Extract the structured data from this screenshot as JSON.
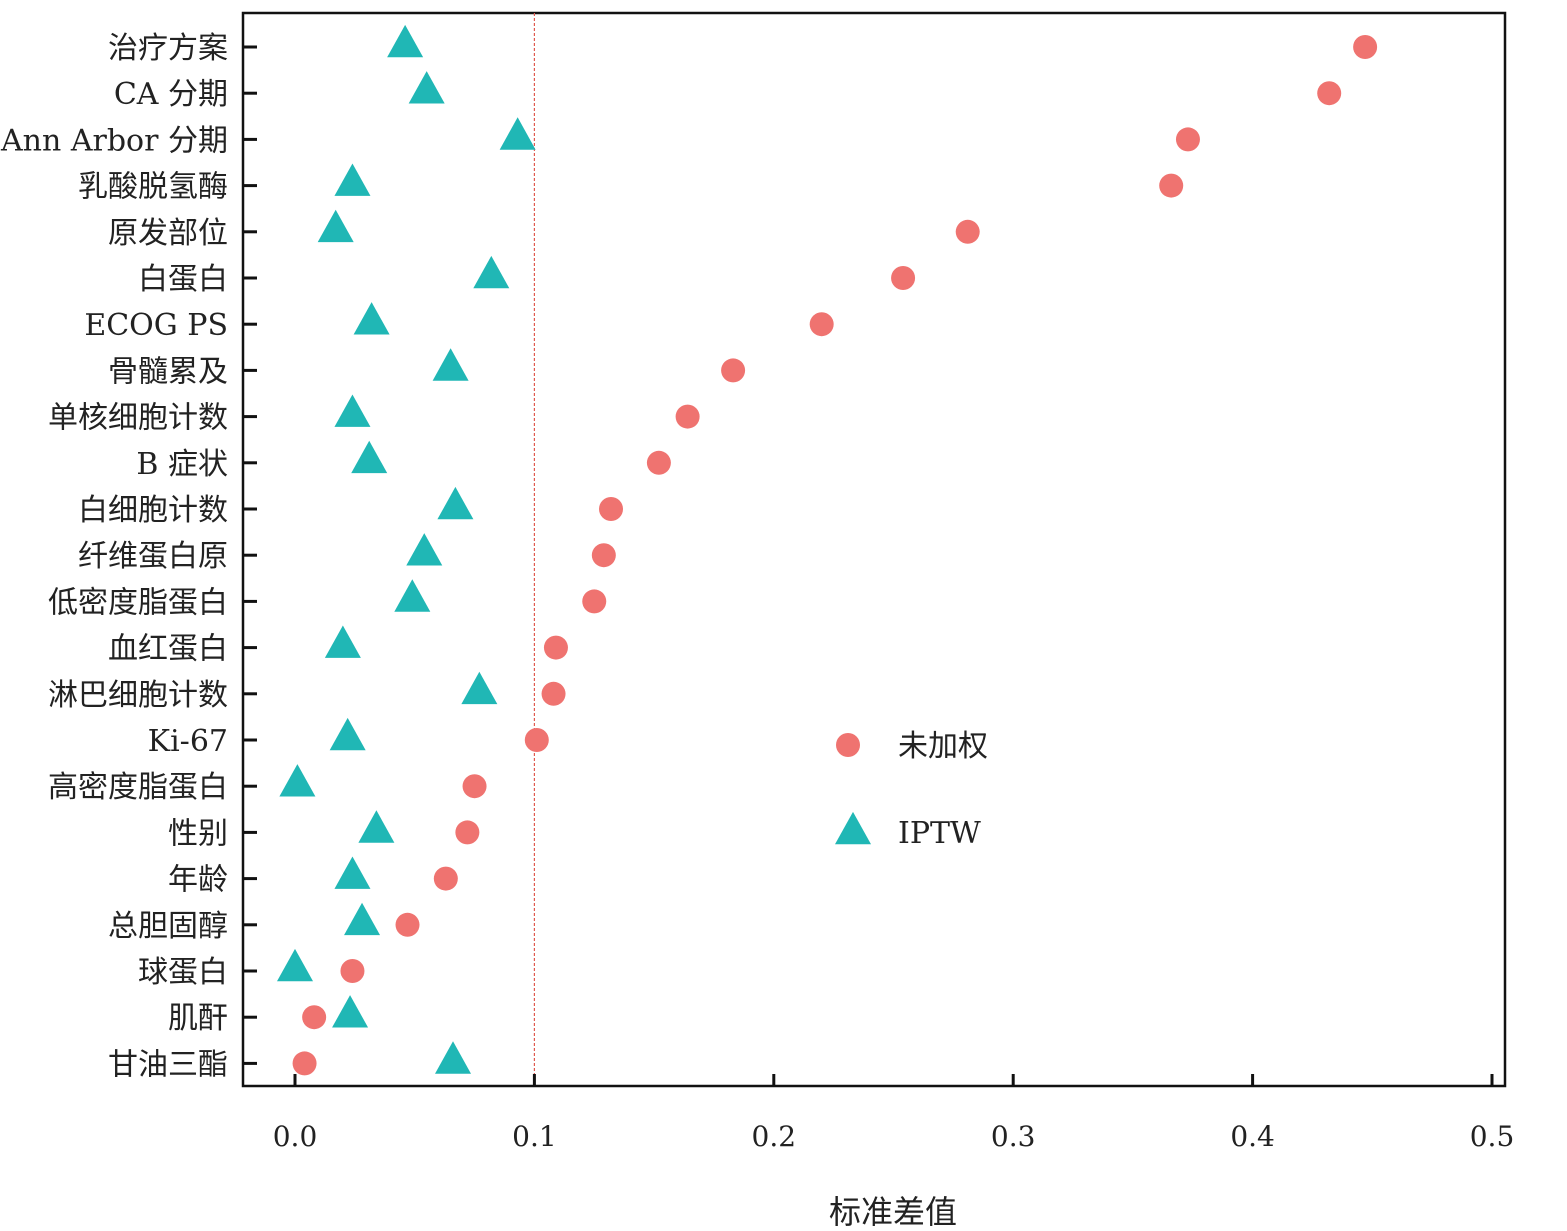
{
  "chart_data": {
    "type": "scatter",
    "title": "",
    "xlabel": "标准差值",
    "ylabel": "",
    "xlim": [
      -0.02,
      0.5
    ],
    "x_ticks": [
      0.0,
      0.1,
      0.2,
      0.3,
      0.4,
      0.5
    ],
    "x_tick_labels": [
      "0.0",
      "0.1",
      "0.2",
      "0.3",
      "0.4",
      "0.5"
    ],
    "reference_line": 0.1,
    "grid": false,
    "legend_position": "center-right",
    "categories": [
      "治疗方案",
      "CA 分期",
      "Ann Arbor 分期",
      "乳酸脱氢酶",
      "原发部位",
      "白蛋白",
      "ECOG PS",
      "骨髓累及",
      "单核细胞计数",
      "B 症状",
      "白细胞计数",
      "纤维蛋白原",
      "低密度脂蛋白",
      "血红蛋白",
      "淋巴细胞计数",
      "Ki-67",
      "高密度脂蛋白",
      "性别",
      "年龄",
      "总胆固醇",
      "球蛋白",
      "肌酐",
      "甘油三酯"
    ],
    "series": [
      {
        "name": "未加权",
        "marker": "circle",
        "color": "#ef7370",
        "values": [
          0.447,
          0.432,
          0.373,
          0.366,
          0.281,
          0.254,
          0.22,
          0.183,
          0.164,
          0.152,
          0.132,
          0.129,
          0.125,
          0.109,
          0.108,
          0.101,
          0.075,
          0.072,
          0.063,
          0.047,
          0.024,
          0.008,
          0.004
        ]
      },
      {
        "name": "IPTW",
        "marker": "triangle",
        "color": "#20b7b5",
        "values": [
          0.046,
          0.055,
          0.093,
          0.024,
          0.017,
          0.082,
          0.032,
          0.065,
          0.024,
          0.031,
          0.067,
          0.054,
          0.049,
          0.02,
          0.077,
          0.022,
          0.001,
          0.034,
          0.024,
          0.028,
          0.0,
          0.023,
          0.066
        ]
      }
    ]
  }
}
